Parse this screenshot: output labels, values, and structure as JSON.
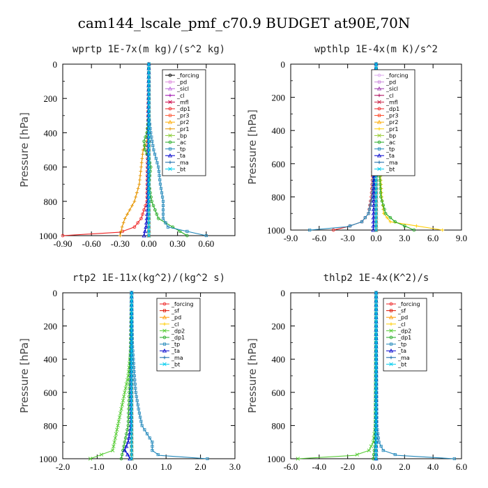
{
  "figure": {
    "title": "cam144_lscale_pmf_c70.9  BUDGET at90E,70N"
  },
  "chart_data": [
    {
      "type": "line",
      "id": "wprtp",
      "title": "wprtp   1E-7x(m kg)/(s^2 kg)",
      "ylabel": "Pressure [hPa]",
      "xlim": [
        -0.9,
        0.9
      ],
      "ylim": [
        1000,
        0
      ],
      "xticks": [
        "-0.90",
        "-0.60",
        "-0.30",
        "0.00",
        "0.30",
        "0.60"
      ],
      "yticks": [
        "0",
        "200",
        "400",
        "600",
        "800",
        "1000"
      ],
      "legend": [
        "_forcing",
        "_pd",
        "_sicl",
        "_cl",
        "_mfl",
        "_dp1",
        "_pr3",
        "_pr2",
        "_pr1",
        "_bp",
        "_ac",
        "_tp",
        "_ta",
        "_ma",
        "_bt"
      ],
      "series": [
        {
          "name": "_forcing",
          "color": "#000000",
          "p": [
            0,
            1000
          ],
          "x": [
            0,
            0
          ]
        },
        {
          "name": "_pd",
          "color": "#dd88dd",
          "p": [
            0,
            1000
          ],
          "x": [
            0,
            0
          ]
        },
        {
          "name": "_sicl",
          "color": "#bb66dd",
          "p": [
            0,
            1000
          ],
          "x": [
            0,
            0
          ]
        },
        {
          "name": "_cl",
          "color": "#9900aa",
          "p": [
            0,
            1000
          ],
          "x": [
            0,
            0
          ]
        },
        {
          "name": "_mfl",
          "color": "#cc0044",
          "p": [
            0,
            1000
          ],
          "x": [
            0,
            0
          ]
        },
        {
          "name": "_dp1",
          "color": "#ee2222",
          "p": [
            0,
            800,
            900,
            950,
            980,
            1000
          ],
          "x": [
            0,
            -0.02,
            -0.08,
            -0.15,
            -0.3,
            -0.9
          ]
        },
        {
          "name": "_pr3",
          "color": "#ff5533",
          "p": [
            0,
            1000
          ],
          "x": [
            0,
            0
          ]
        },
        {
          "name": "_pr2",
          "color": "#ffaa00",
          "p": [
            0,
            1000
          ],
          "x": [
            0,
            0
          ]
        },
        {
          "name": "_pr1",
          "color": "#e69500",
          "p": [
            0,
            300,
            450,
            500,
            600,
            700,
            800,
            850,
            900,
            950,
            1000
          ],
          "x": [
            0,
            0,
            -0.02,
            -0.06,
            -0.08,
            -0.1,
            -0.15,
            -0.2,
            -0.25,
            -0.28,
            -0.3
          ]
        },
        {
          "name": "_bp",
          "color": "#88cc33",
          "p": [
            0,
            1000
          ],
          "x": [
            0,
            0
          ]
        },
        {
          "name": "_ac",
          "color": "#22aa22",
          "p": [
            0,
            300,
            400,
            450,
            500,
            550,
            600,
            700,
            800,
            900,
            950,
            1000
          ],
          "x": [
            0,
            0,
            -0.02,
            -0.05,
            -0.04,
            0,
            0.02,
            0,
            0.03,
            0.1,
            0.25,
            0.4
          ]
        },
        {
          "name": "_tp",
          "color": "#2288bb",
          "p": [
            0,
            300,
            400,
            500,
            600,
            700,
            800,
            900,
            950,
            1000
          ],
          "x": [
            0,
            0,
            0.02,
            0.05,
            0.1,
            0.12,
            0.15,
            0.15,
            0.2,
            0.6
          ]
        },
        {
          "name": "_ta",
          "color": "#0000cc",
          "p": [
            0,
            800,
            900,
            950,
            1000
          ],
          "x": [
            0,
            -0.01,
            -0.02,
            -0.03,
            -0.05
          ]
        },
        {
          "name": "_ma",
          "color": "#1166aa",
          "p": [
            0,
            1000
          ],
          "x": [
            0,
            0
          ]
        },
        {
          "name": "_bt",
          "color": "#00ccee",
          "p": [
            0,
            1000
          ],
          "x": [
            0,
            0
          ]
        }
      ]
    },
    {
      "type": "line",
      "id": "wpthlp",
      "title": "wpthlp   1E-4x(m K)/s^2",
      "ylabel": "Pressure [hPa]",
      "xlim": [
        -9,
        9
      ],
      "ylim": [
        1000,
        0
      ],
      "xticks": [
        "-9.0",
        "-6.0",
        "-3.0",
        "0.0",
        "3.0",
        "6.0",
        "9.0"
      ],
      "yticks": [
        "0",
        "200",
        "400",
        "600",
        "800",
        "1000"
      ],
      "legend": [
        "_forcing",
        "_pd",
        "_sicl",
        "_cl",
        "_mfl",
        "_dp1",
        "_pr3",
        "_pr2",
        "_pr1",
        "_bp",
        "_ac",
        "_tp",
        "_ta",
        "_ma",
        "_bt"
      ],
      "series": [
        {
          "name": "_forcing",
          "color": "#ddaaee",
          "p": [
            0,
            1000
          ],
          "x": [
            0,
            0
          ]
        },
        {
          "name": "_pd",
          "color": "#cc88dd",
          "p": [
            0,
            1000
          ],
          "x": [
            0,
            0
          ]
        },
        {
          "name": "_sicl",
          "color": "#9933aa",
          "p": [
            0,
            1000
          ],
          "x": [
            0,
            0
          ]
        },
        {
          "name": "_cl",
          "color": "#aa0055",
          "p": [
            0,
            1000
          ],
          "x": [
            0,
            0
          ]
        },
        {
          "name": "_mfl",
          "color": "#cc2244",
          "p": [
            0,
            1000
          ],
          "x": [
            0,
            0
          ]
        },
        {
          "name": "_dp1",
          "color": "#ee2222",
          "p": [
            0,
            400,
            600,
            800,
            900,
            950,
            980,
            1000
          ],
          "x": [
            0,
            -0.2,
            -0.3,
            -0.5,
            -0.8,
            -1.5,
            -3,
            -4.5
          ]
        },
        {
          "name": "_pr3",
          "color": "#ff4422",
          "p": [
            0,
            1000
          ],
          "x": [
            0,
            0
          ]
        },
        {
          "name": "_pr2",
          "color": "#ffaa00",
          "p": [
            0,
            1000
          ],
          "x": [
            0,
            0
          ]
        },
        {
          "name": "_pr1",
          "color": "#ffcc00",
          "p": [
            0,
            400,
            600,
            800,
            900,
            950,
            1000
          ],
          "x": [
            0,
            0.2,
            0.4,
            0.6,
            0.8,
            1.5,
            7
          ]
        },
        {
          "name": "_bp",
          "color": "#99cc33",
          "p": [
            0,
            1000
          ],
          "x": [
            0,
            0
          ]
        },
        {
          "name": "_ac",
          "color": "#22aa22",
          "p": [
            0,
            400,
            600,
            800,
            900,
            950,
            1000
          ],
          "x": [
            0,
            0.1,
            0.3,
            0.5,
            1.0,
            2.0,
            4.0
          ]
        },
        {
          "name": "_tp",
          "color": "#2288bb",
          "p": [
            0,
            400,
            600,
            800,
            900,
            950,
            980,
            1000
          ],
          "x": [
            0,
            -0.1,
            -0.2,
            -0.4,
            -0.8,
            -1.5,
            -3,
            -7
          ]
        },
        {
          "name": "_ta",
          "color": "#0000cc",
          "p": [
            0,
            1000
          ],
          "x": [
            0,
            -0.3
          ]
        },
        {
          "name": "_ma",
          "color": "#1166aa",
          "p": [
            0,
            1000
          ],
          "x": [
            0,
            0
          ]
        },
        {
          "name": "_bt",
          "color": "#00ccee",
          "p": [
            0,
            1000
          ],
          "x": [
            0,
            0
          ]
        }
      ]
    },
    {
      "type": "line",
      "id": "rtp2",
      "title": "rtp2   1E-11x(kg^2)/(kg^2 s)",
      "ylabel": "Pressure [hPa]",
      "xlim": [
        -2.0,
        3.0
      ],
      "ylim": [
        1000,
        0
      ],
      "xticks": [
        "-2.0",
        "-1.0",
        "0.0",
        "1.0",
        "2.0",
        "3.0"
      ],
      "yticks": [
        "0",
        "200",
        "400",
        "600",
        "800",
        "1000"
      ],
      "legend": [
        "_forcing",
        "_sf",
        "_pd",
        "_cl",
        "_dp2",
        "_dp1",
        "_tp",
        "_ta",
        "_ma",
        "_bt"
      ],
      "series": [
        {
          "name": "_forcing",
          "color": "#ee2222",
          "p": [
            0,
            1000
          ],
          "x": [
            0,
            0
          ]
        },
        {
          "name": "_sf",
          "color": "#dd1100",
          "p": [
            0,
            1000
          ],
          "x": [
            0,
            0
          ]
        },
        {
          "name": "_pd",
          "color": "#ff9900",
          "p": [
            0,
            1000
          ],
          "x": [
            0,
            0
          ]
        },
        {
          "name": "_cl",
          "color": "#ffcc00",
          "p": [
            0,
            1000
          ],
          "x": [
            0,
            0
          ]
        },
        {
          "name": "_dp2",
          "color": "#55cc33",
          "p": [
            0,
            300,
            400,
            500,
            600,
            700,
            800,
            850,
            900,
            950,
            1000
          ],
          "x": [
            0,
            0,
            -0.05,
            -0.1,
            -0.2,
            -0.3,
            -0.4,
            -0.45,
            -0.5,
            -0.55,
            -1.2
          ]
        },
        {
          "name": "_dp1",
          "color": "#22aa22",
          "p": [
            0,
            500,
            800,
            900,
            1000
          ],
          "x": [
            0,
            -0.05,
            -0.1,
            -0.2,
            -0.3
          ]
        },
        {
          "name": "_tp",
          "color": "#2288bb",
          "p": [
            0,
            300,
            400,
            500,
            600,
            700,
            800,
            850,
            900,
            950,
            980,
            1000
          ],
          "x": [
            0,
            0.02,
            0.05,
            0.08,
            0.12,
            0.2,
            0.3,
            0.45,
            0.6,
            0.6,
            0.8,
            2.2
          ]
        },
        {
          "name": "_ta",
          "color": "#0000cc",
          "p": [
            0,
            800,
            900,
            950,
            980,
            1000
          ],
          "x": [
            0,
            -0.02,
            -0.1,
            -0.2,
            -0.1,
            -0.05
          ]
        },
        {
          "name": "_ma",
          "color": "#1166aa",
          "p": [
            0,
            1000
          ],
          "x": [
            0,
            0
          ]
        },
        {
          "name": "_bt",
          "color": "#00ccee",
          "p": [
            0,
            1000
          ],
          "x": [
            0,
            0
          ]
        }
      ]
    },
    {
      "type": "line",
      "id": "thlp2",
      "title": "thlp2   1E-4x(K^2)/s",
      "ylabel": "Pressure [hPa]",
      "xlim": [
        -6.0,
        6.0
      ],
      "ylim": [
        1000,
        0
      ],
      "xticks": [
        "-6.0",
        "-4.0",
        "-2.0",
        "0.0",
        "2.0",
        "4.0",
        "6.0"
      ],
      "yticks": [
        "0",
        "200",
        "400",
        "600",
        "800",
        "1000"
      ],
      "legend": [
        "_forcing",
        "_sf",
        "_pd",
        "_cl",
        "_dp2",
        "_dp1",
        "_tp",
        "_ta",
        "_ma",
        "_bt"
      ],
      "series": [
        {
          "name": "_forcing",
          "color": "#ee2222",
          "p": [
            0,
            1000
          ],
          "x": [
            0,
            0
          ]
        },
        {
          "name": "_sf",
          "color": "#dd1100",
          "p": [
            0,
            1000
          ],
          "x": [
            0,
            0
          ]
        },
        {
          "name": "_pd",
          "color": "#ff9900",
          "p": [
            0,
            1000
          ],
          "x": [
            0,
            0
          ]
        },
        {
          "name": "_cl",
          "color": "#ffcc00",
          "p": [
            0,
            1000
          ],
          "x": [
            0,
            0
          ]
        },
        {
          "name": "_dp2",
          "color": "#55cc33",
          "p": [
            0,
            800,
            900,
            950,
            980,
            1000
          ],
          "x": [
            0,
            -0.05,
            -0.2,
            -0.5,
            -1.5,
            -5.5
          ]
        },
        {
          "name": "_dp1",
          "color": "#22aa22",
          "p": [
            0,
            900,
            1000
          ],
          "x": [
            0,
            -0.05,
            -0.2
          ]
        },
        {
          "name": "_tp",
          "color": "#2288bb",
          "p": [
            0,
            800,
            900,
            950,
            980,
            1000
          ],
          "x": [
            0,
            0.05,
            0.2,
            0.5,
            1.5,
            5.5
          ]
        },
        {
          "name": "_ta",
          "color": "#0000cc",
          "p": [
            0,
            1000
          ],
          "x": [
            0,
            0
          ]
        },
        {
          "name": "_ma",
          "color": "#1166aa",
          "p": [
            0,
            1000
          ],
          "x": [
            0,
            0
          ]
        },
        {
          "name": "_bt",
          "color": "#00ccee",
          "p": [
            0,
            1000
          ],
          "x": [
            0,
            0
          ]
        }
      ]
    }
  ]
}
